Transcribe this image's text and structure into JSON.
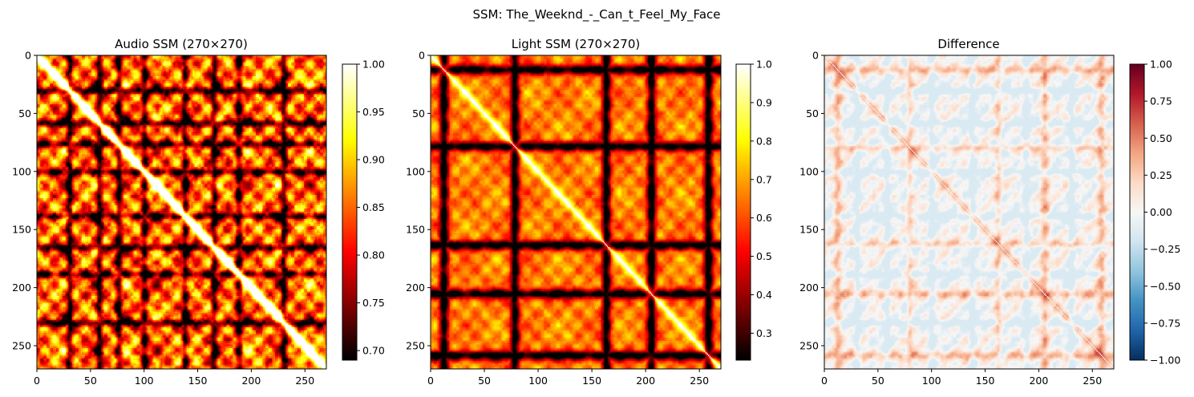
{
  "figure": {
    "suptitle": "SSM: The_Weeknd_-_Can_t_Feel_My_Face"
  },
  "chart_data": [
    {
      "type": "heatmap",
      "title": "Audio SSM (270×270)",
      "n": 270,
      "x_ticks": [
        0,
        50,
        100,
        150,
        200,
        250
      ],
      "y_ticks": [
        0,
        50,
        100,
        150,
        200,
        250
      ],
      "xlim": [
        0,
        270
      ],
      "ylim": [
        270,
        0
      ],
      "colormap": "hot",
      "colorbar": {
        "min": 0.69,
        "max": 1.0,
        "ticks": [
          "0.70",
          "0.75",
          "0.80",
          "0.85",
          "0.90",
          "0.95",
          "1.00"
        ],
        "tick_values": [
          0.7,
          0.75,
          0.8,
          0.85,
          0.9,
          0.95,
          1.0
        ]
      },
      "dark_bands": [
        30,
        58,
        76,
        100,
        138,
        165,
        188,
        230
      ],
      "diagonal_value": 1.0
    },
    {
      "type": "heatmap",
      "title": "Light SSM (270×270)",
      "n": 270,
      "x_ticks": [
        0,
        50,
        100,
        150,
        200,
        250
      ],
      "y_ticks": [
        0,
        50,
        100,
        150,
        200,
        250
      ],
      "xlim": [
        0,
        270
      ],
      "ylim": [
        270,
        0
      ],
      "colormap": "hot",
      "colorbar": {
        "min": 0.23,
        "max": 1.0,
        "ticks": [
          "0.3",
          "0.4",
          "0.5",
          "0.6",
          "0.7",
          "0.8",
          "0.9",
          "1.0"
        ],
        "tick_values": [
          0.3,
          0.4,
          0.5,
          0.6,
          0.7,
          0.8,
          0.9,
          1.0
        ]
      },
      "dark_bands": [
        12,
        78,
        163,
        205,
        258
      ],
      "diagonal_value": 1.0
    },
    {
      "type": "heatmap",
      "title": "Difference",
      "n": 270,
      "x_ticks": [
        0,
        50,
        100,
        150,
        200,
        250
      ],
      "y_ticks": [
        0,
        50,
        100,
        150,
        200,
        250
      ],
      "xlim": [
        0,
        270
      ],
      "ylim": [
        270,
        0
      ],
      "colormap": "RdBu_r",
      "colorbar": {
        "min": -1.0,
        "max": 1.0,
        "ticks": [
          "−1.00",
          "−0.75",
          "−0.50",
          "−0.25",
          "0.00",
          "0.25",
          "0.50",
          "0.75",
          "1.00"
        ],
        "tick_values": [
          -1.0,
          -0.75,
          -0.5,
          -0.25,
          0.0,
          0.25,
          0.5,
          0.75,
          1.0
        ]
      },
      "dark_bands": [
        12,
        78,
        163,
        205,
        258
      ],
      "diagonal_value": 0.0
    }
  ]
}
